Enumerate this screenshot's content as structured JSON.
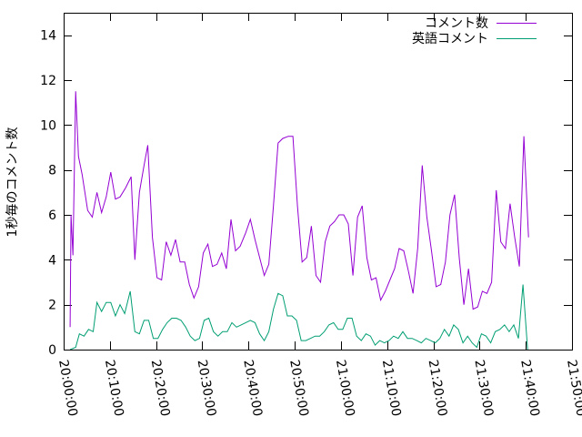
{
  "chart_data": {
    "type": "line",
    "ylabel": "1秒毎のコメント数",
    "ylim": [
      0,
      15
    ],
    "yticks": [
      0,
      2,
      4,
      6,
      8,
      10,
      12,
      14
    ],
    "xlim_minutes": [
      0,
      110
    ],
    "xticks": [
      "20:00:00",
      "20:10:00",
      "20:20:00",
      "20:30:00",
      "20:40:00",
      "20:50:00",
      "21:00:00",
      "21:10:00",
      "21:20:00",
      "21:30:00",
      "21:40:00",
      "21:50:00"
    ],
    "xtick_minutes": [
      0,
      10,
      20,
      30,
      40,
      50,
      60,
      70,
      80,
      90,
      100,
      110
    ],
    "legend_position": "top-right",
    "grid": false,
    "series": [
      {
        "name": "コメント数",
        "color": "#9400d3",
        "points": [
          [
            1.4,
            1.0
          ],
          [
            1.6,
            6.0
          ],
          [
            2.0,
            4.2
          ],
          [
            2.6,
            11.5
          ],
          [
            3.2,
            8.6
          ],
          [
            4.0,
            7.8
          ],
          [
            5.2,
            6.2
          ],
          [
            6.2,
            5.9
          ],
          [
            7.2,
            7.0
          ],
          [
            8.2,
            6.1
          ],
          [
            9.2,
            6.8
          ],
          [
            10.2,
            7.9
          ],
          [
            11.2,
            6.7
          ],
          [
            12.2,
            6.8
          ],
          [
            13.4,
            7.2
          ],
          [
            14.6,
            7.7
          ],
          [
            15.4,
            4.0
          ],
          [
            16.4,
            7.0
          ],
          [
            17.4,
            8.2
          ],
          [
            18.2,
            9.1
          ],
          [
            19.2,
            5.0
          ],
          [
            20.2,
            3.2
          ],
          [
            21.2,
            3.1
          ],
          [
            22.2,
            4.8
          ],
          [
            23.2,
            4.2
          ],
          [
            24.2,
            4.9
          ],
          [
            25.2,
            3.9
          ],
          [
            26.2,
            3.9
          ],
          [
            27.2,
            2.9
          ],
          [
            28.2,
            2.3
          ],
          [
            29.2,
            2.8
          ],
          [
            30.2,
            4.3
          ],
          [
            31.2,
            4.7
          ],
          [
            32.2,
            3.7
          ],
          [
            33.2,
            3.8
          ],
          [
            34.2,
            4.3
          ],
          [
            35.2,
            3.6
          ],
          [
            36.2,
            5.8
          ],
          [
            37.2,
            4.4
          ],
          [
            38.2,
            4.6
          ],
          [
            39.4,
            5.2
          ],
          [
            40.4,
            5.8
          ],
          [
            41.4,
            4.9
          ],
          [
            42.4,
            4.1
          ],
          [
            43.4,
            3.3
          ],
          [
            44.4,
            3.8
          ],
          [
            45.4,
            6.4
          ],
          [
            46.4,
            9.2
          ],
          [
            47.4,
            9.4
          ],
          [
            48.6,
            9.5
          ],
          [
            49.6,
            9.5
          ],
          [
            50.6,
            6.4
          ],
          [
            51.6,
            3.9
          ],
          [
            52.6,
            4.1
          ],
          [
            53.6,
            5.5
          ],
          [
            54.6,
            3.3
          ],
          [
            55.6,
            3.0
          ],
          [
            56.6,
            4.8
          ],
          [
            57.6,
            5.5
          ],
          [
            58.6,
            5.7
          ],
          [
            59.6,
            6.0
          ],
          [
            60.6,
            6.0
          ],
          [
            61.6,
            5.6
          ],
          [
            62.6,
            3.3
          ],
          [
            63.6,
            5.9
          ],
          [
            64.6,
            6.4
          ],
          [
            65.6,
            4.1
          ],
          [
            66.6,
            3.1
          ],
          [
            67.6,
            3.2
          ],
          [
            68.6,
            2.2
          ],
          [
            69.6,
            2.6
          ],
          [
            70.6,
            3.1
          ],
          [
            71.6,
            3.6
          ],
          [
            72.6,
            4.5
          ],
          [
            73.6,
            4.4
          ],
          [
            74.6,
            3.5
          ],
          [
            75.6,
            2.5
          ],
          [
            76.6,
            4.5
          ],
          [
            77.6,
            8.2
          ],
          [
            78.6,
            5.9
          ],
          [
            79.6,
            4.4
          ],
          [
            80.6,
            2.8
          ],
          [
            81.6,
            2.9
          ],
          [
            82.6,
            3.9
          ],
          [
            83.6,
            6.0
          ],
          [
            84.6,
            6.9
          ],
          [
            85.6,
            4.1
          ],
          [
            86.6,
            2.0
          ],
          [
            87.6,
            3.6
          ],
          [
            88.6,
            1.8
          ],
          [
            89.6,
            1.9
          ],
          [
            90.6,
            2.6
          ],
          [
            91.6,
            2.5
          ],
          [
            92.6,
            3.0
          ],
          [
            93.6,
            7.1
          ],
          [
            94.6,
            4.8
          ],
          [
            95.6,
            4.5
          ],
          [
            96.6,
            6.5
          ],
          [
            97.6,
            5.0
          ],
          [
            98.6,
            3.7
          ],
          [
            99.6,
            9.5
          ],
          [
            100.6,
            5.0
          ]
        ]
      },
      {
        "name": "英語コメント",
        "color": "#009e73",
        "points": [
          [
            1.4,
            0.0
          ],
          [
            2.6,
            0.1
          ],
          [
            3.4,
            0.7
          ],
          [
            4.4,
            0.6
          ],
          [
            5.4,
            0.9
          ],
          [
            6.4,
            0.8
          ],
          [
            7.2,
            2.1
          ],
          [
            8.2,
            1.7
          ],
          [
            9.2,
            2.1
          ],
          [
            10.2,
            2.1
          ],
          [
            11.2,
            1.5
          ],
          [
            12.2,
            2.0
          ],
          [
            13.2,
            1.6
          ],
          [
            14.4,
            2.6
          ],
          [
            15.4,
            0.8
          ],
          [
            16.4,
            0.7
          ],
          [
            17.4,
            1.3
          ],
          [
            18.4,
            1.3
          ],
          [
            19.4,
            0.5
          ],
          [
            20.4,
            0.5
          ],
          [
            21.4,
            0.9
          ],
          [
            22.4,
            1.2
          ],
          [
            23.4,
            1.4
          ],
          [
            24.4,
            1.4
          ],
          [
            25.4,
            1.3
          ],
          [
            26.4,
            1.0
          ],
          [
            27.4,
            0.6
          ],
          [
            28.4,
            0.4
          ],
          [
            29.4,
            0.5
          ],
          [
            30.4,
            1.3
          ],
          [
            31.4,
            1.4
          ],
          [
            32.4,
            0.8
          ],
          [
            33.4,
            0.6
          ],
          [
            34.4,
            0.8
          ],
          [
            35.4,
            0.8
          ],
          [
            36.4,
            1.2
          ],
          [
            37.4,
            1.0
          ],
          [
            38.4,
            1.1
          ],
          [
            39.4,
            1.2
          ],
          [
            40.4,
            1.3
          ],
          [
            41.4,
            1.2
          ],
          [
            42.4,
            0.7
          ],
          [
            43.4,
            0.4
          ],
          [
            44.4,
            0.8
          ],
          [
            45.4,
            1.8
          ],
          [
            46.4,
            2.5
          ],
          [
            47.4,
            2.4
          ],
          [
            48.4,
            1.5
          ],
          [
            49.4,
            1.5
          ],
          [
            50.4,
            1.3
          ],
          [
            51.4,
            0.4
          ],
          [
            52.4,
            0.4
          ],
          [
            53.4,
            0.5
          ],
          [
            54.4,
            0.6
          ],
          [
            55.4,
            0.6
          ],
          [
            56.4,
            0.8
          ],
          [
            57.4,
            1.1
          ],
          [
            58.4,
            1.2
          ],
          [
            59.4,
            0.9
          ],
          [
            60.4,
            0.9
          ],
          [
            61.4,
            1.4
          ],
          [
            62.4,
            1.4
          ],
          [
            63.4,
            0.6
          ],
          [
            64.4,
            0.4
          ],
          [
            65.4,
            0.7
          ],
          [
            66.4,
            0.6
          ],
          [
            67.4,
            0.2
          ],
          [
            68.4,
            0.4
          ],
          [
            69.4,
            0.3
          ],
          [
            70.4,
            0.4
          ],
          [
            71.4,
            0.6
          ],
          [
            72.4,
            0.5
          ],
          [
            73.4,
            0.8
          ],
          [
            74.4,
            0.5
          ],
          [
            75.4,
            0.5
          ],
          [
            76.4,
            0.4
          ],
          [
            77.4,
            0.3
          ],
          [
            78.4,
            0.5
          ],
          [
            79.4,
            0.4
          ],
          [
            80.4,
            0.3
          ],
          [
            81.4,
            0.5
          ],
          [
            82.4,
            0.9
          ],
          [
            83.4,
            0.6
          ],
          [
            84.4,
            1.1
          ],
          [
            85.4,
            0.9
          ],
          [
            86.4,
            0.3
          ],
          [
            87.4,
            0.6
          ],
          [
            88.4,
            0.3
          ],
          [
            89.4,
            0.1
          ],
          [
            90.4,
            0.7
          ],
          [
            91.4,
            0.6
          ],
          [
            92.4,
            0.3
          ],
          [
            93.4,
            0.8
          ],
          [
            94.4,
            0.9
          ],
          [
            95.4,
            1.1
          ],
          [
            96.4,
            0.8
          ],
          [
            97.4,
            1.1
          ],
          [
            98.4,
            0.5
          ],
          [
            99.4,
            2.9
          ],
          [
            100.4,
            0.0
          ]
        ]
      }
    ]
  }
}
